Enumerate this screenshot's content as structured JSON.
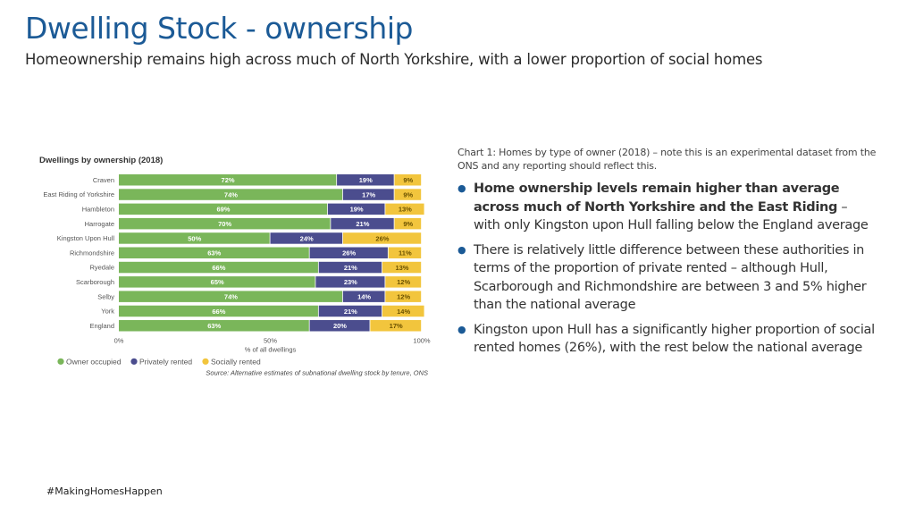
{
  "header": {
    "title": "Dwelling Stock - ownership",
    "subtitle": "Homeownership remains high across much of North Yorkshire, with a lower proportion of social homes"
  },
  "chart_data": {
    "type": "bar",
    "orientation": "horizontal",
    "stacked": true,
    "title": "Dwellings by ownership (2018)",
    "xlabel": "% of all dwellings",
    "xlim": [
      0,
      100
    ],
    "x_ticks": [
      "0%",
      "50%",
      "100%"
    ],
    "categories": [
      "Craven",
      "East Riding of Yorkshire",
      "Hambleton",
      "Harrogate",
      "Kingston Upon Hull",
      "Richmondshire",
      "Ryedale",
      "Scarborough",
      "Selby",
      "York",
      "England"
    ],
    "series": [
      {
        "name": "Owner occupied",
        "color": "#7ab65a",
        "values": [
          72,
          74,
          69,
          70,
          50,
          63,
          66,
          65,
          74,
          66,
          63
        ],
        "labels": [
          "72%",
          "74%",
          "69%",
          "70%",
          "50%",
          "63%",
          "66%",
          "65%",
          "74%",
          "66%",
          "63%"
        ]
      },
      {
        "name": "Privately rented",
        "color": "#4b4d8e",
        "values": [
          19,
          17,
          19,
          21,
          24,
          26,
          21,
          23,
          14,
          21,
          20
        ],
        "labels": [
          "19%",
          "17%",
          "19%",
          "21%",
          "24%",
          "26%",
          "21%",
          "23%",
          "14%",
          "21%",
          "20%"
        ]
      },
      {
        "name": "Socially rented",
        "color": "#f2c53d",
        "values": [
          9,
          9,
          13,
          9,
          26,
          11,
          13,
          12,
          12,
          14,
          17
        ],
        "labels": [
          "9%",
          "9%",
          "13%",
          "9%",
          "26%",
          "11%",
          "13%",
          "12%",
          "12%",
          "14%",
          "17%"
        ]
      }
    ],
    "legend_position": "bottom-left",
    "source": "Source: Alternative estimates of subnational dwelling stock by tenure, ONS"
  },
  "commentary": {
    "caption": "Chart 1: Homes by type of owner (2018) – note this is an experimental dataset from the ONS and any reporting should reflect this.",
    "bullets": [
      {
        "bold": "Home ownership levels remain higher than average across much of North Yorkshire and the East Riding",
        "text": " – with only Kingston upon Hull falling below the England average"
      },
      {
        "bold": "",
        "text": "There is relatively little difference between these authorities in terms of the proportion of private rented – although Hull, Scarborough and Richmondshire are between 3 and 5% higher than the national average"
      },
      {
        "bold": "",
        "text": "Kingston upon Hull has a significantly higher proportion of social rented homes (26%), with the rest below the national average"
      }
    ],
    "bullet_glyph": "●",
    "bullet_color": "#1b5a96"
  },
  "footer": {
    "hashtag": "#MakingHomesHappen"
  }
}
